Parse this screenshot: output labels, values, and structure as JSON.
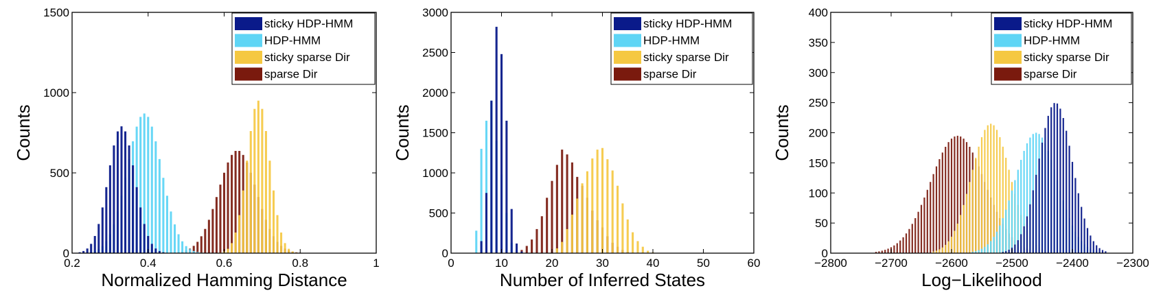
{
  "colors": {
    "sticky_hdp_hmm": "#0a1a8a",
    "hdp_hmm": "#5fd5f5",
    "sticky_sparse_dir": "#f5c842",
    "sparse_dir": "#7a1a0e",
    "axis": "#000000"
  },
  "chart_data": [
    {
      "type": "histogram",
      "xlabel": "Normalized Hamming Distance",
      "ylabel": "Counts",
      "xlim": [
        0.2,
        1
      ],
      "ylim": [
        0,
        1500
      ],
      "xticks": [
        "0.2",
        "0.4",
        "0.6",
        "0.8",
        "1"
      ],
      "yticks": [
        "0",
        "500",
        "1000",
        "1500"
      ],
      "legend": [
        "sticky HDP-HMM",
        "HDP-HMM",
        "sticky sparse Dir",
        "sparse Dir"
      ],
      "legend_position": "top-right",
      "series": [
        {
          "name": "sticky HDP-HMM",
          "mean": 0.33,
          "sd": 0.035,
          "peak": 790
        },
        {
          "name": "HDP-HMM",
          "mean": 0.39,
          "sd": 0.045,
          "peak": 870
        },
        {
          "name": "sticky sparse Dir",
          "mean": 0.69,
          "sd": 0.03,
          "peak": 950
        },
        {
          "name": "sparse Dir",
          "mean": 0.635,
          "sd": 0.05,
          "peak": 640
        }
      ]
    },
    {
      "type": "histogram",
      "xlabel": "Number of Inferred States",
      "ylabel": "Counts",
      "xlim": [
        0,
        60
      ],
      "ylim": [
        0,
        3000
      ],
      "xticks": [
        "0",
        "10",
        "20",
        "30",
        "40",
        "50",
        "60"
      ],
      "yticks": [
        "0",
        "500",
        "1000",
        "1500",
        "2000",
        "2500",
        "3000"
      ],
      "legend": [
        "sticky HDP-HMM",
        "HDP-HMM",
        "sticky sparse Dir",
        "sparse Dir"
      ],
      "legend_position": "top-right",
      "series": [
        {
          "name": "sticky HDP-HMM",
          "x": [
            6,
            7,
            8,
            9,
            10,
            11,
            12,
            13,
            14
          ],
          "values": [
            150,
            750,
            1900,
            2820,
            2480,
            1650,
            550,
            120,
            20
          ]
        },
        {
          "name": "HDP-HMM",
          "x": [
            5,
            6,
            7,
            8,
            9,
            10,
            11,
            12,
            13
          ],
          "values": [
            280,
            1300,
            1650,
            1900,
            1400,
            980,
            500,
            130,
            30
          ]
        },
        {
          "name": "sticky sparse Dir",
          "x": [
            21,
            22,
            23,
            24,
            25,
            26,
            27,
            28,
            29,
            30,
            31,
            32,
            33,
            34,
            35,
            36,
            37,
            38,
            39,
            40
          ],
          "values": [
            60,
            140,
            300,
            480,
            680,
            870,
            1020,
            1180,
            1290,
            1310,
            1170,
            1030,
            840,
            620,
            420,
            260,
            150,
            80,
            30,
            10
          ]
        },
        {
          "name": "sparse Dir",
          "x": [
            14,
            15,
            16,
            17,
            18,
            19,
            20,
            21,
            22,
            23,
            24,
            25,
            26,
            27,
            28,
            29,
            30,
            31,
            32,
            33,
            34,
            35
          ],
          "values": [
            40,
            90,
            170,
            300,
            460,
            690,
            900,
            1100,
            1290,
            1230,
            1130,
            950,
            840,
            690,
            530,
            410,
            320,
            210,
            130,
            80,
            40,
            15
          ]
        }
      ]
    },
    {
      "type": "histogram",
      "xlabel": "Log−Likelihood",
      "ylabel": "Counts",
      "xlim": [
        -2800,
        -2300
      ],
      "ylim": [
        0,
        400
      ],
      "xticks": [
        "−2800",
        "−2700",
        "−2600",
        "−2500",
        "−2400",
        "−2300"
      ],
      "yticks": [
        "0",
        "50",
        "100",
        "150",
        "200",
        "250",
        "300",
        "350",
        "400"
      ],
      "legend": [
        "sticky HDP-HMM",
        "HDP-HMM",
        "sticky sparse Dir",
        "sparse Dir"
      ],
      "legend_position": "top-right",
      "series": [
        {
          "name": "sticky HDP-HMM",
          "mean": -2428,
          "sd": 28,
          "peak": 250
        },
        {
          "name": "HDP-HMM",
          "mean": -2460,
          "sd": 35,
          "peak": 200
        },
        {
          "name": "sticky sparse Dir",
          "mean": -2535,
          "sd": 32,
          "peak": 215
        },
        {
          "name": "sparse Dir",
          "mean": -2590,
          "sd": 45,
          "peak": 195
        }
      ]
    }
  ]
}
